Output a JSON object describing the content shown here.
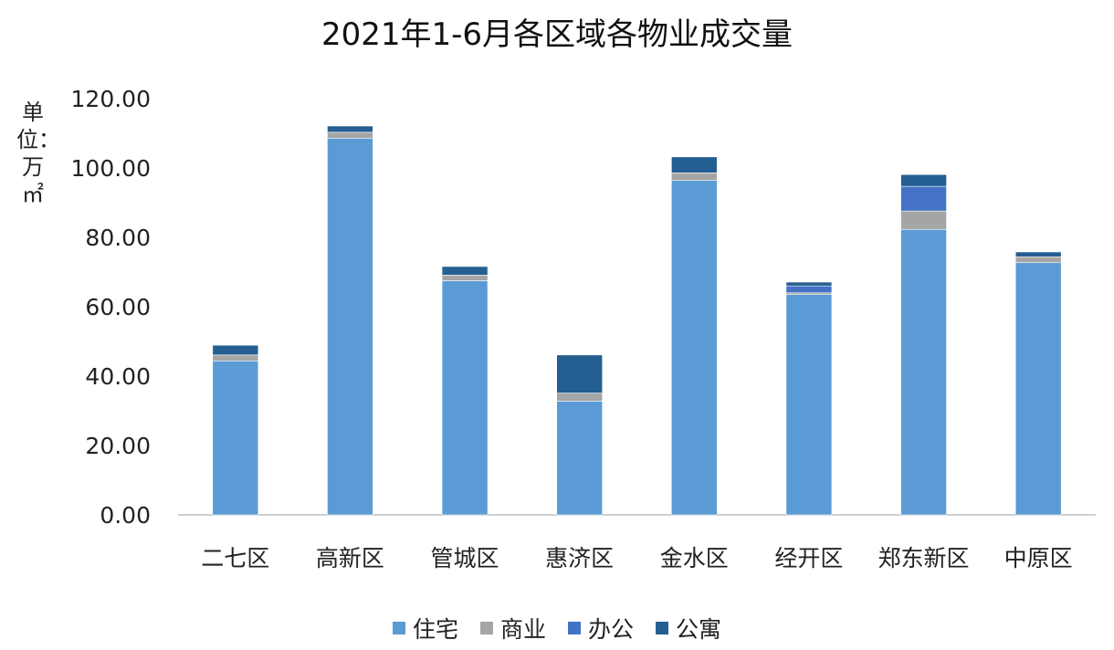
{
  "chart_data": {
    "type": "bar",
    "stacked": true,
    "title": "2021年1-6月各区域各物业成交量",
    "ylabel": "单位：万㎡",
    "xlabel": "",
    "ylim": [
      0,
      120
    ],
    "yticks": [
      "0.00",
      "20.00",
      "40.00",
      "60.00",
      "80.00",
      "100.00",
      "120.00"
    ],
    "grid": false,
    "legend_position": "bottom",
    "categories": [
      "二七区",
      "高新区",
      "管城区",
      "惠济区",
      "金水区",
      "经开区",
      "郑东新区",
      "中原区"
    ],
    "series": [
      {
        "name": "住宅",
        "color": "#5b9bd5",
        "values": [
          44.4,
          108.6,
          67.5,
          32.8,
          96.4,
          63.5,
          82.3,
          72.7
        ]
      },
      {
        "name": "商业",
        "color": "#a5a5a5",
        "values": [
          1.7,
          1.7,
          1.6,
          2.3,
          2.2,
          0.5,
          5.3,
          1.7
        ]
      },
      {
        "name": "办公",
        "color": "#4472c4",
        "values": [
          0,
          0,
          0,
          0,
          0,
          2.0,
          7.1,
          0
        ]
      },
      {
        "name": "公寓",
        "color": "#255e91",
        "values": [
          2.8,
          1.8,
          2.5,
          11.0,
          4.6,
          1.1,
          3.4,
          1.4
        ]
      }
    ]
  }
}
